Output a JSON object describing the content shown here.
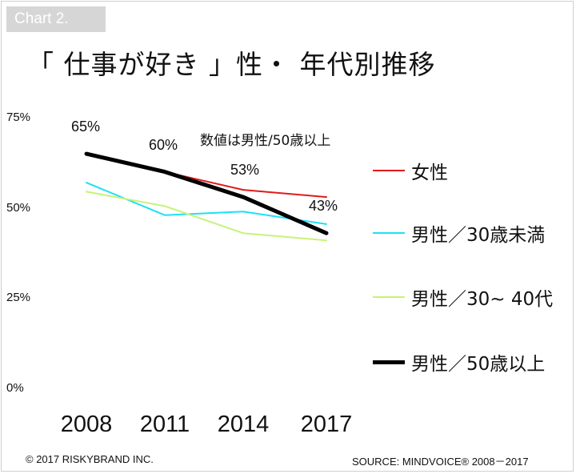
{
  "header": {
    "badge": "Chart 2.",
    "title": "「 仕事が好き 」性・ 年代別推移"
  },
  "annotation": "数値は男性/50歳以上",
  "footer": {
    "copyright": "© 2017 RISKYBRAND INC.",
    "source": "SOURCE: MINDVOICE® 2008－2017"
  },
  "chart_data": {
    "type": "line",
    "x": [
      "2008",
      "2011",
      "2014",
      "2017"
    ],
    "ylim": [
      0,
      75
    ],
    "yticks": [
      0,
      25,
      50,
      75
    ],
    "ytick_labels": [
      "0%",
      "25%",
      "50%",
      "75%"
    ],
    "legend_position": "right",
    "series": [
      {
        "name": "女性",
        "color": "#e31a1a",
        "values": [
          65,
          60,
          55,
          53
        ],
        "width": 2
      },
      {
        "name": "男性／30歳未満",
        "color": "#1ee0f5",
        "values": [
          57,
          48,
          49,
          45.5
        ],
        "width": 2
      },
      {
        "name": "男性／30~ 40代",
        "color": "#c8f27a",
        "values": [
          54.5,
          50.5,
          43,
          41
        ],
        "width": 2
      },
      {
        "name": "男性／50歳以上",
        "color": "#000000",
        "values": [
          65,
          60,
          53,
          43
        ],
        "width": 5
      }
    ],
    "data_labels": [
      {
        "series": 3,
        "index": 0,
        "text": "65%"
      },
      {
        "series": 3,
        "index": 1,
        "text": "60%"
      },
      {
        "series": 3,
        "index": 2,
        "text": "53%"
      },
      {
        "series": 3,
        "index": 3,
        "text": "43%"
      }
    ]
  }
}
